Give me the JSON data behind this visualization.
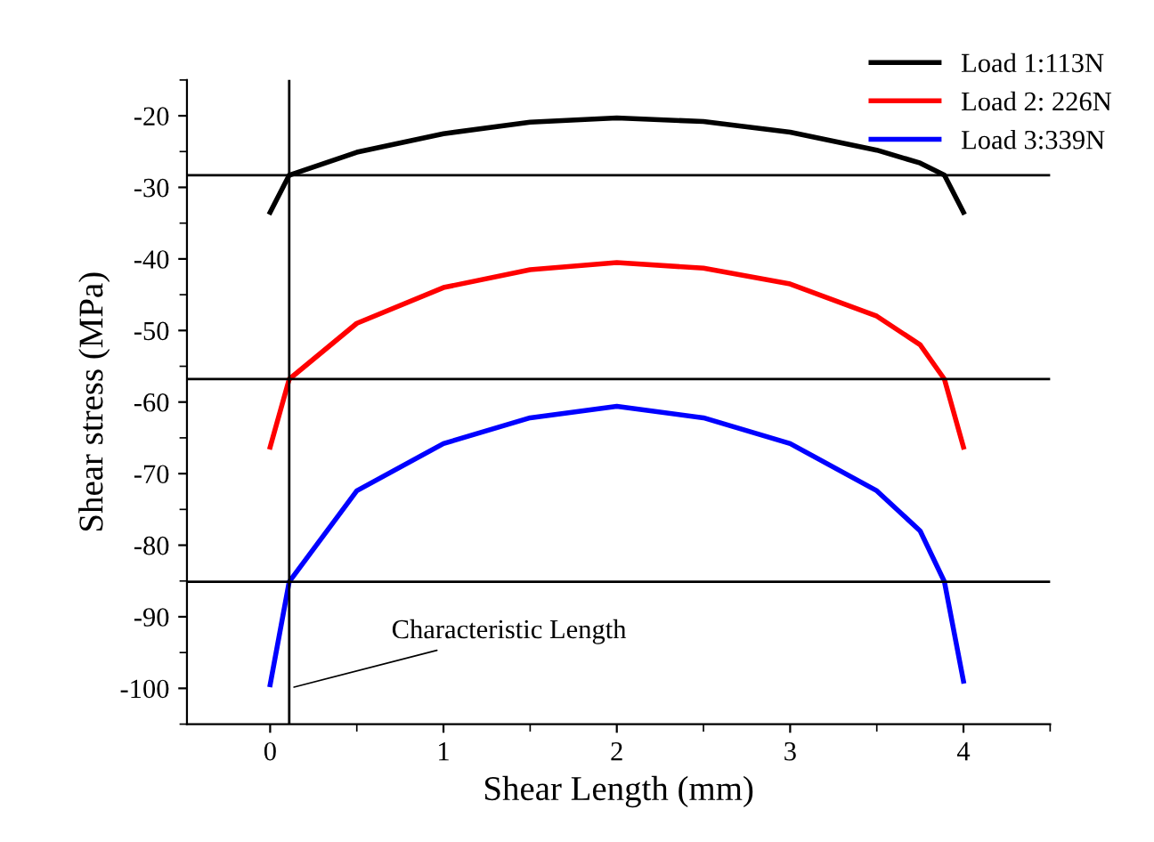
{
  "chart_data": {
    "type": "line",
    "xlabel": "Shear Length (mm)",
    "ylabel": "Shear stress (MPa)",
    "xlim": [
      -0.48,
      4.5
    ],
    "ylim": [
      -105,
      -15
    ],
    "xticks": [
      0,
      1,
      2,
      3,
      4
    ],
    "yticks": [
      -100,
      -90,
      -80,
      -70,
      -60,
      -50,
      -40,
      -30,
      -20
    ],
    "grid": false,
    "legend": "top right",
    "marker": "none",
    "line_style": "solid",
    "series": [
      {
        "name": "Load 1:113N",
        "color": "#000000",
        "x": [
          0,
          0.11,
          0.5,
          1,
          1.5,
          2,
          2.5,
          3,
          3.5,
          3.75,
          3.89,
          4
        ],
        "values": [
          -33.5,
          -28.3,
          -25.1,
          -22.5,
          -20.9,
          -20.3,
          -20.8,
          -22.3,
          -24.8,
          -26.6,
          -28.3,
          -33.5
        ]
      },
      {
        "name": "Load 2: 226N",
        "color": "#ff0000",
        "x": [
          0,
          0.11,
          0.5,
          1,
          1.5,
          2,
          2.5,
          3,
          3.5,
          3.75,
          3.89,
          4
        ],
        "values": [
          -66.3,
          -56.8,
          -49,
          -44,
          -41.5,
          -40.5,
          -41.3,
          -43.5,
          -48,
          -52,
          -56.8,
          -66.3
        ]
      },
      {
        "name": "Load 3:339N",
        "color": "#0000ff",
        "x": [
          0,
          0.11,
          0.5,
          1,
          1.5,
          2,
          2.5,
          3,
          3.5,
          3.75,
          3.89,
          4
        ],
        "values": [
          -99.5,
          -85.1,
          -72.4,
          -65.8,
          -62.2,
          -60.6,
          -62.2,
          -65.8,
          -72.4,
          -78,
          -85.1,
          -99
        ]
      }
    ],
    "ref_lines": [
      {
        "axis": "y",
        "value": -28.3,
        "color": "#000000"
      },
      {
        "axis": "y",
        "value": -56.8,
        "color": "#000000"
      },
      {
        "axis": "y",
        "value": -85.1,
        "color": "#000000"
      },
      {
        "axis": "x",
        "value": 0.11,
        "color": "#000000"
      }
    ],
    "annotations": [
      {
        "text": "Characteristic Length",
        "x": 0.11,
        "y": -100
      }
    ]
  }
}
